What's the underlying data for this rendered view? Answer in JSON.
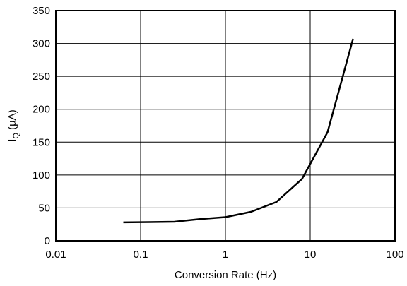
{
  "chart_data": {
    "type": "line",
    "title": "",
    "xlabel": "Conversion Rate (Hz)",
    "ylabel": {
      "main": "I",
      "sub": "Q",
      "unit": " (µA)"
    },
    "x_scale": "log",
    "xlim": [
      0.01,
      100
    ],
    "ylim": [
      0,
      350
    ],
    "grid": true,
    "x_ticks": [
      0.01,
      0.1,
      1,
      10,
      100
    ],
    "x_tick_labels": [
      "0.01",
      "0.1",
      "1",
      "10",
      "100"
    ],
    "y_ticks": [
      0,
      50,
      100,
      150,
      200,
      250,
      300,
      350
    ],
    "y_tick_labels": [
      "0",
      "50",
      "100",
      "150",
      "200",
      "250",
      "300",
      "350"
    ],
    "series": [
      {
        "color": "#000000",
        "x": [
          0.0625,
          0.125,
          0.25,
          0.5,
          1,
          2,
          4,
          8,
          16,
          32
        ],
        "y": [
          28,
          28.5,
          29,
          33,
          36,
          44,
          59,
          94,
          165,
          307
        ]
      }
    ]
  }
}
